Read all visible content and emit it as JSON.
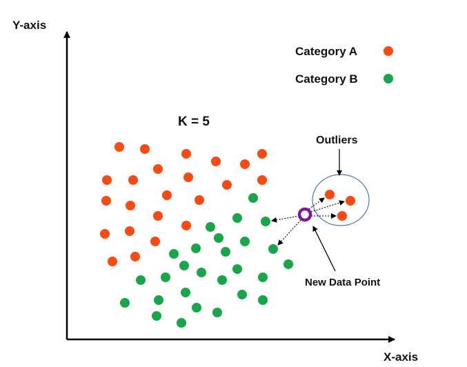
{
  "diagram": {
    "y_axis_label": "Y-axis",
    "x_axis_label": "X-axis",
    "k_label": "K = 5",
    "outliers_label": "Outliers",
    "new_point_label": "New Data Point"
  },
  "legend": [
    {
      "label": "Category A",
      "color": "#fa4a14"
    },
    {
      "label": "Category B",
      "color": "#19a64a"
    }
  ],
  "colors": {
    "category_a": "#fa4a14",
    "category_b": "#19a64a",
    "new_point": "#7a1a9a",
    "outlier_circle": "#4a78b0",
    "axis": "#000000"
  }
}
